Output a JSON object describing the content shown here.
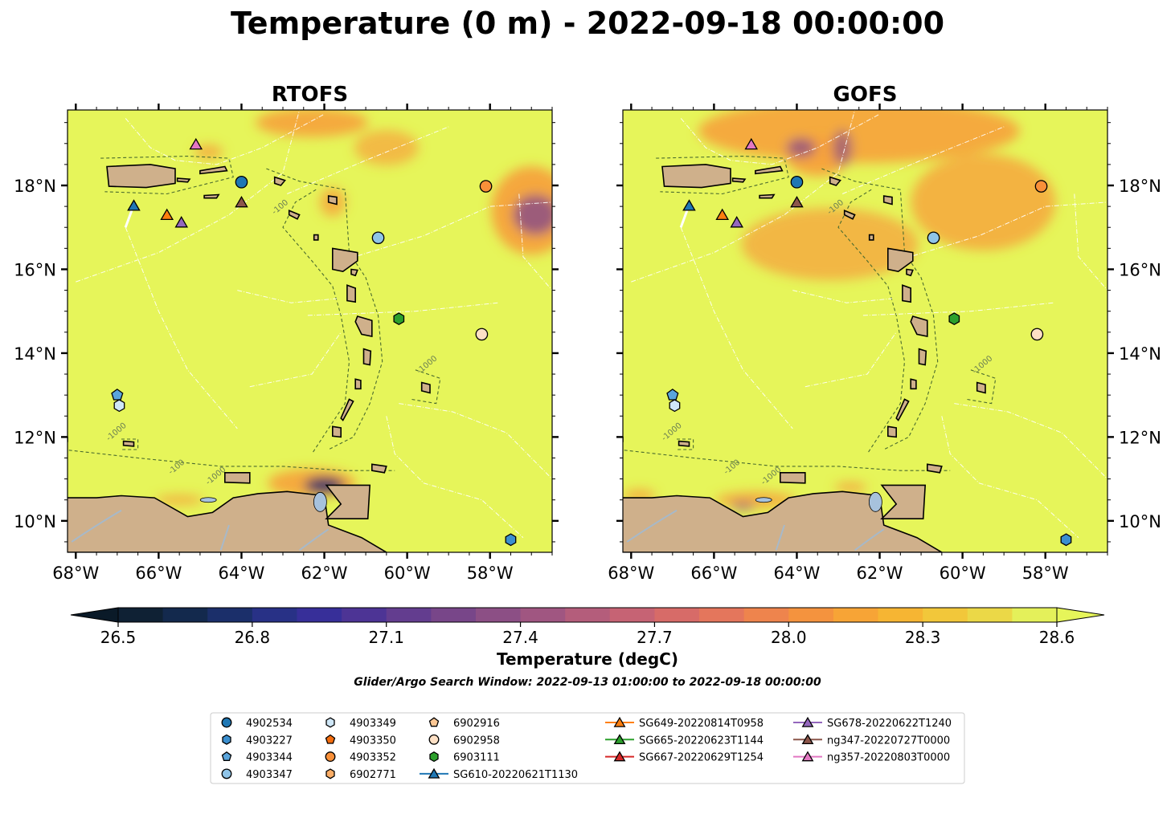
{
  "figure": {
    "title": "Temperature (0 m) - 2022-09-18 00:00:00",
    "subtitle": "Glider/Argo Search Window: 2022-09-13 01:00:00 to 2022-09-18 00:00:00",
    "colorbar_label": "Temperature (degC)",
    "colorbar_ticks": [
      "26.5",
      "26.8",
      "27.1",
      "27.4",
      "27.7",
      "28.0",
      "28.3",
      "28.6"
    ],
    "colorbar_colors": [
      "#0f2134",
      "#13294d",
      "#1b2f6a",
      "#283186",
      "#372f99",
      "#4d3495",
      "#633d8f",
      "#784689",
      "#8c4f85",
      "#a05681",
      "#b45d7b",
      "#c66374",
      "#d76b68",
      "#e4765c",
      "#ee844d",
      "#f4933e",
      "#f7a436",
      "#f6b533",
      "#f2c73a",
      "#ebd847",
      "#e4f05a"
    ],
    "land_color": "#cfb08b",
    "ocean_color": "#e6f55a",
    "warm_color": "#f6a23c",
    "cool_color": "#8c4f85",
    "lon_ticks": [
      "68°W",
      "66°W",
      "64°W",
      "62°W",
      "60°W",
      "58°W"
    ],
    "lat_ticks": [
      "18°N",
      "16°N",
      "14°N",
      "12°N",
      "10°N"
    ],
    "contour_labels": [
      "-100",
      "-1000"
    ]
  },
  "panels": [
    {
      "id": "rtofs",
      "title": "RTOFS"
    },
    {
      "id": "gofs",
      "title": "GOFS"
    }
  ],
  "markers": [
    {
      "label": "4902534",
      "shape": "circle",
      "color": "#1f77b4",
      "lon": -64.0,
      "lat": 18.08
    },
    {
      "label": "4903227",
      "shape": "hexagon",
      "color": "#3b8fcf",
      "lon": -57.5,
      "lat": 9.55
    },
    {
      "label": "4903344",
      "shape": "pentagon",
      "color": "#5aa5dc",
      "lon": -67.0,
      "lat": 13.0
    },
    {
      "label": "4903347",
      "shape": "circle",
      "color": "#8fc4e8",
      "lon": -60.7,
      "lat": 16.75
    },
    {
      "label": "4903349",
      "shape": "hexagon",
      "color": "#cfe7f7",
      "lon": -66.95,
      "lat": 12.75
    },
    {
      "label": "4903350",
      "shape": "pentagon",
      "color": "#f46d0e",
      "lon": null,
      "lat": null
    },
    {
      "label": "4903352",
      "shape": "circle",
      "color": "#f99039",
      "lon": -58.1,
      "lat": 17.98
    },
    {
      "label": "6902771",
      "shape": "hexagon",
      "color": "#fbad66",
      "lon": null,
      "lat": null
    },
    {
      "label": "6902916",
      "shape": "pentagon",
      "color": "#fcc794",
      "lon": null,
      "lat": null
    },
    {
      "label": "6902958",
      "shape": "circle",
      "color": "#fde0c5",
      "lon": -58.2,
      "lat": 14.45
    },
    {
      "label": "6903111",
      "shape": "hexagon",
      "color": "#2ca02c",
      "lon": -60.2,
      "lat": 14.82
    },
    {
      "label": "SG610-20220621T1130",
      "shape": "triangle",
      "color": "#1f77b4",
      "line": "#1f77b4",
      "lon": -66.6,
      "lat": 17.52,
      "track": true
    },
    {
      "label": "SG649-20220814T0958",
      "shape": "triangle",
      "color": "#ff7f0e",
      "line": "#ff7f0e",
      "lon": -65.8,
      "lat": 17.3
    },
    {
      "label": "SG665-20220623T1144",
      "shape": "triangle",
      "color": "#2ca02c",
      "line": "#2ca02c",
      "lon": null,
      "lat": null
    },
    {
      "label": "SG667-20220629T1254",
      "shape": "triangle",
      "color": "#d62728",
      "line": "#d62728",
      "lon": null,
      "lat": null
    },
    {
      "label": "SG678-20220622T1240",
      "shape": "triangle",
      "color": "#9467bd",
      "line": "#9467bd",
      "lon": -65.45,
      "lat": 17.12
    },
    {
      "label": "ng347-20220727T0000",
      "shape": "triangle",
      "color": "#8c564b",
      "line": "#8c564b",
      "lon": -64.0,
      "lat": 17.6
    },
    {
      "label": "ng357-20220803T0000",
      "shape": "triangle",
      "color": "#e377c2",
      "line": "#e377c2",
      "lon": -65.1,
      "lat": 18.98
    }
  ]
}
